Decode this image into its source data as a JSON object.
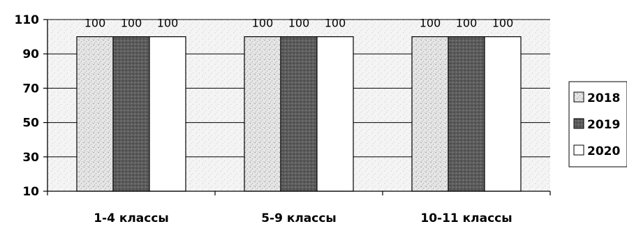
{
  "chart_data": {
    "type": "bar",
    "categories": [
      "1-4 классы",
      "5-9 классы",
      "10-11 классы"
    ],
    "series": [
      {
        "name": "2018",
        "values": [
          100,
          100,
          100
        ],
        "color": "#dcdcdc",
        "pattern": "speckle-light"
      },
      {
        "name": "2019",
        "values": [
          100,
          100,
          100
        ],
        "color": "#6a6a6a",
        "pattern": "speckle-dark"
      },
      {
        "name": "2020",
        "values": [
          100,
          100,
          100
        ],
        "color": "#ffffff",
        "pattern": "none"
      }
    ],
    "data_labels": [
      "100",
      "100",
      "100",
      "100",
      "100",
      "100",
      "100",
      "100",
      "100"
    ],
    "y_ticks": [
      10,
      30,
      50,
      70,
      90,
      110
    ],
    "ylim": [
      10,
      110
    ],
    "grid": true,
    "legend_position": "right",
    "title": "",
    "xlabel": "",
    "ylabel": ""
  }
}
